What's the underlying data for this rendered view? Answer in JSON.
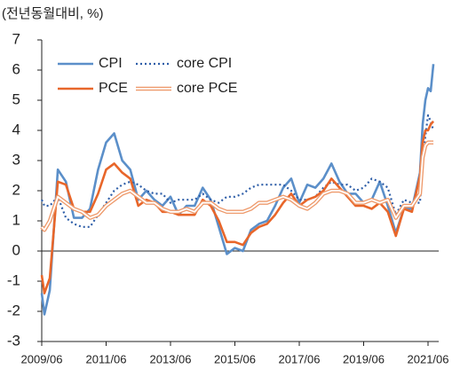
{
  "chart_data": {
    "type": "line",
    "title": "(전년동월대비, %)",
    "x": [
      "2009/06",
      "2009/07",
      "2009/09",
      "2009/12",
      "2010/03",
      "2010/06",
      "2010/09",
      "2010/12",
      "2011/03",
      "2011/06",
      "2011/09",
      "2011/12",
      "2012/03",
      "2012/06",
      "2012/09",
      "2012/12",
      "2013/03",
      "2013/06",
      "2013/09",
      "2013/12",
      "2014/03",
      "2014/06",
      "2014/09",
      "2014/12",
      "2015/03",
      "2015/06",
      "2015/09",
      "2015/12",
      "2016/03",
      "2016/06",
      "2016/09",
      "2016/12",
      "2017/03",
      "2017/06",
      "2017/09",
      "2017/12",
      "2018/03",
      "2018/06",
      "2018/09",
      "2018/12",
      "2019/03",
      "2019/06",
      "2019/09",
      "2019/12",
      "2020/03",
      "2020/06",
      "2020/09",
      "2020/12",
      "2021/03",
      "2021/04",
      "2021/05",
      "2021/06",
      "2021/07",
      "2021/08"
    ],
    "series": [
      {
        "name": "CPI",
        "color": "#5b8fc9",
        "style": "solid",
        "values": [
          -1.4,
          -2.1,
          -1.3,
          2.7,
          2.3,
          1.1,
          1.1,
          1.4,
          2.7,
          3.6,
          3.9,
          3.0,
          2.7,
          1.7,
          2.0,
          1.7,
          1.5,
          1.8,
          1.2,
          1.5,
          1.5,
          2.1,
          1.7,
          0.8,
          -0.1,
          0.1,
          0.0,
          0.7,
          0.9,
          1.0,
          1.5,
          2.1,
          2.4,
          1.6,
          2.2,
          2.1,
          2.4,
          2.9,
          2.3,
          1.9,
          1.9,
          1.6,
          1.7,
          2.3,
          1.5,
          0.6,
          1.4,
          1.4,
          2.6,
          4.2,
          5.0,
          5.4,
          5.3,
          6.2
        ]
      },
      {
        "name": "core CPI",
        "color": "#2e5ea8",
        "style": "dotted",
        "values": [
          1.7,
          1.5,
          1.5,
          1.8,
          1.1,
          0.9,
          0.8,
          0.8,
          1.2,
          1.6,
          2.0,
          2.2,
          2.3,
          2.2,
          2.0,
          1.9,
          1.9,
          1.6,
          1.7,
          1.7,
          1.7,
          1.9,
          1.7,
          1.6,
          1.8,
          1.8,
          1.9,
          2.1,
          2.2,
          2.2,
          2.2,
          2.2,
          2.0,
          1.7,
          1.7,
          1.8,
          2.1,
          2.3,
          2.2,
          2.2,
          2.0,
          2.1,
          2.4,
          2.3,
          2.1,
          1.2,
          1.7,
          1.6,
          1.6,
          3.0,
          3.8,
          4.5,
          4.3,
          4.0
        ]
      },
      {
        "name": "PCE",
        "color": "#e8662a",
        "style": "solid",
        "values": [
          -0.8,
          -1.4,
          -0.9,
          2.3,
          2.2,
          1.4,
          1.3,
          1.3,
          1.9,
          2.7,
          2.9,
          2.6,
          2.4,
          1.5,
          1.7,
          1.6,
          1.3,
          1.3,
          1.2,
          1.2,
          1.2,
          1.7,
          1.5,
          1.0,
          0.3,
          0.3,
          0.2,
          0.6,
          0.8,
          0.9,
          1.2,
          1.6,
          1.9,
          1.5,
          1.7,
          1.8,
          2.0,
          2.4,
          2.1,
          1.8,
          1.5,
          1.5,
          1.4,
          1.6,
          1.3,
          0.5,
          1.4,
          1.3,
          2.5,
          3.6,
          4.0,
          4.0,
          4.2,
          4.3
        ]
      },
      {
        "name": "core PCE",
        "color": "#ee9a6c",
        "style": "double",
        "values": [
          0.8,
          0.7,
          1.0,
          1.8,
          1.6,
          1.4,
          1.3,
          1.1,
          1.2,
          1.5,
          1.7,
          1.9,
          2.0,
          1.8,
          1.6,
          1.6,
          1.4,
          1.3,
          1.3,
          1.4,
          1.3,
          1.6,
          1.6,
          1.4,
          1.3,
          1.3,
          1.3,
          1.4,
          1.6,
          1.6,
          1.7,
          1.8,
          1.7,
          1.5,
          1.4,
          1.6,
          1.9,
          2.0,
          2.0,
          1.9,
          1.6,
          1.6,
          1.7,
          1.6,
          1.7,
          1.1,
          1.5,
          1.5,
          1.9,
          3.1,
          3.5,
          3.6,
          3.6,
          3.6
        ]
      }
    ],
    "xlim": [
      "2009/06",
      "2021/10"
    ],
    "xticks": [
      "2009/06",
      "2011/06",
      "2013/06",
      "2015/06",
      "2017/06",
      "2019/06",
      "2021/06"
    ],
    "ylim": [
      -3,
      7
    ],
    "yticks": [
      -3,
      -2,
      -1,
      0,
      1,
      2,
      3,
      4,
      5,
      6,
      7
    ]
  }
}
